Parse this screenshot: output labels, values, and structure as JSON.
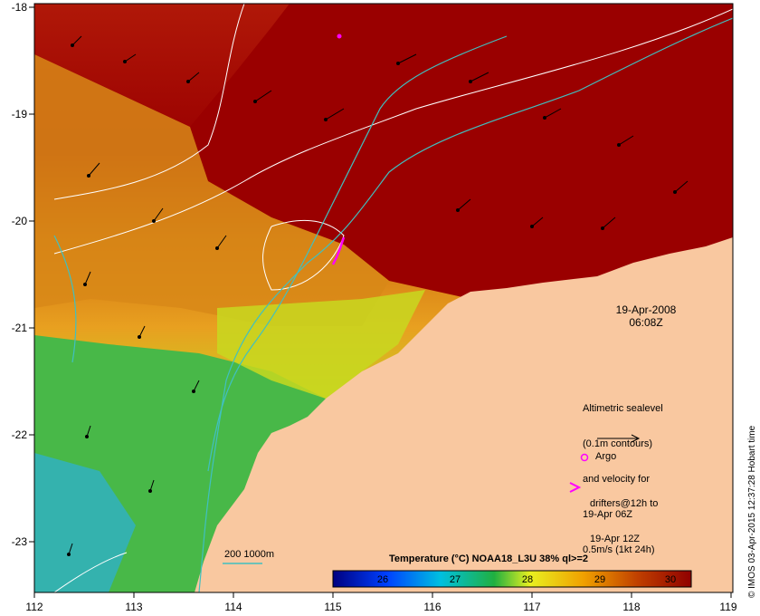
{
  "map": {
    "lon_ticks": [
      "112",
      "113",
      "114",
      "115",
      "116",
      "117",
      "118",
      "119"
    ],
    "lat_ticks": [
      "-18",
      "-19",
      "-20",
      "-21",
      "-22",
      "-23"
    ],
    "date": "19-Apr-2008",
    "time": "06:08Z",
    "legend_lines": [
      "Altimetric sealevel",
      "(0.1m contours)",
      "and velocity for",
      "19-Apr 06Z",
      "0.5m/s (1kt 24h)"
    ],
    "argo_label": "Argo",
    "drifter_lines": [
      "drifters@12h to",
      "19-Apr 12Z"
    ],
    "isobath_label": "200  1000m",
    "colorbar_title": "Temperature (°C) NOAA18_L3U 38% ql>=2",
    "colorbar_ticks": [
      "26",
      "27",
      "28",
      "29",
      "30"
    ],
    "credit": "© IMOS 03-Apr-2015 12:37:28 Hobart time",
    "colors": {
      "land": "#f9c8a0",
      "isobath": "#40c0c0",
      "contour": "#ffffff",
      "marker": "#ff00ff",
      "warm": "#a00000",
      "cool": "#30b030"
    }
  }
}
